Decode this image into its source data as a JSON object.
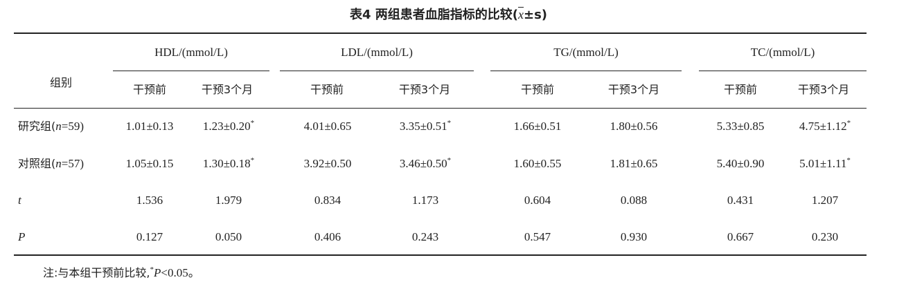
{
  "title": {
    "prefix": "表4  两组患者血脂指标的比较(",
    "xbar": "x",
    "suffix": "±s)"
  },
  "table": {
    "group_header": "组别",
    "metrics": [
      "HDL/(mmol/L)",
      "LDL/(mmol/L)",
      "TG/(mmol/L)",
      "TC/(mmol/L)"
    ],
    "sub_headers": [
      "干预前",
      "干预3个月"
    ],
    "rows": [
      {
        "label_prefix": "研究组(",
        "label_n": "n",
        "label_suffix": "=59)",
        "values": [
          {
            "text": "1.01±0.13",
            "star": ""
          },
          {
            "text": "1.23±0.20",
            "star": "*"
          },
          {
            "text": "4.01±0.65",
            "star": ""
          },
          {
            "text": "3.35±0.51",
            "star": "*"
          },
          {
            "text": "1.66±0.51",
            "star": ""
          },
          {
            "text": "1.80±0.56",
            "star": ""
          },
          {
            "text": "5.33±0.85",
            "star": ""
          },
          {
            "text": "4.75±1.12",
            "star": "*"
          }
        ]
      },
      {
        "label_prefix": "对照组(",
        "label_n": "n",
        "label_suffix": "=57)",
        "values": [
          {
            "text": "1.05±0.15",
            "star": ""
          },
          {
            "text": "1.30±0.18",
            "star": "*"
          },
          {
            "text": "3.92±0.50",
            "star": ""
          },
          {
            "text": "3.46±0.50",
            "star": "*"
          },
          {
            "text": "1.60±0.55",
            "star": ""
          },
          {
            "text": "1.81±0.65",
            "star": ""
          },
          {
            "text": "5.40±0.90",
            "star": ""
          },
          {
            "text": "5.01±1.11",
            "star": "*"
          }
        ]
      },
      {
        "label_prefix": "",
        "label_n": "t",
        "label_suffix": "",
        "values": [
          {
            "text": "1.536",
            "star": ""
          },
          {
            "text": "1.979",
            "star": ""
          },
          {
            "text": "0.834",
            "star": ""
          },
          {
            "text": "1.173",
            "star": ""
          },
          {
            "text": "0.604",
            "star": ""
          },
          {
            "text": "0.088",
            "star": ""
          },
          {
            "text": "0.431",
            "star": ""
          },
          {
            "text": "1.207",
            "star": ""
          }
        ]
      },
      {
        "label_prefix": "",
        "label_n": "P",
        "label_suffix": "",
        "values": [
          {
            "text": "0.127",
            "star": ""
          },
          {
            "text": "0.050",
            "star": ""
          },
          {
            "text": "0.406",
            "star": ""
          },
          {
            "text": "0.243",
            "star": ""
          },
          {
            "text": "0.547",
            "star": ""
          },
          {
            "text": "0.930",
            "star": ""
          },
          {
            "text": "0.667",
            "star": ""
          },
          {
            "text": "0.230",
            "star": ""
          }
        ]
      }
    ]
  },
  "note": {
    "prefix": "注:与本组干预前比较,",
    "star": "*",
    "p": "P",
    "suffix": "<0.05。"
  }
}
